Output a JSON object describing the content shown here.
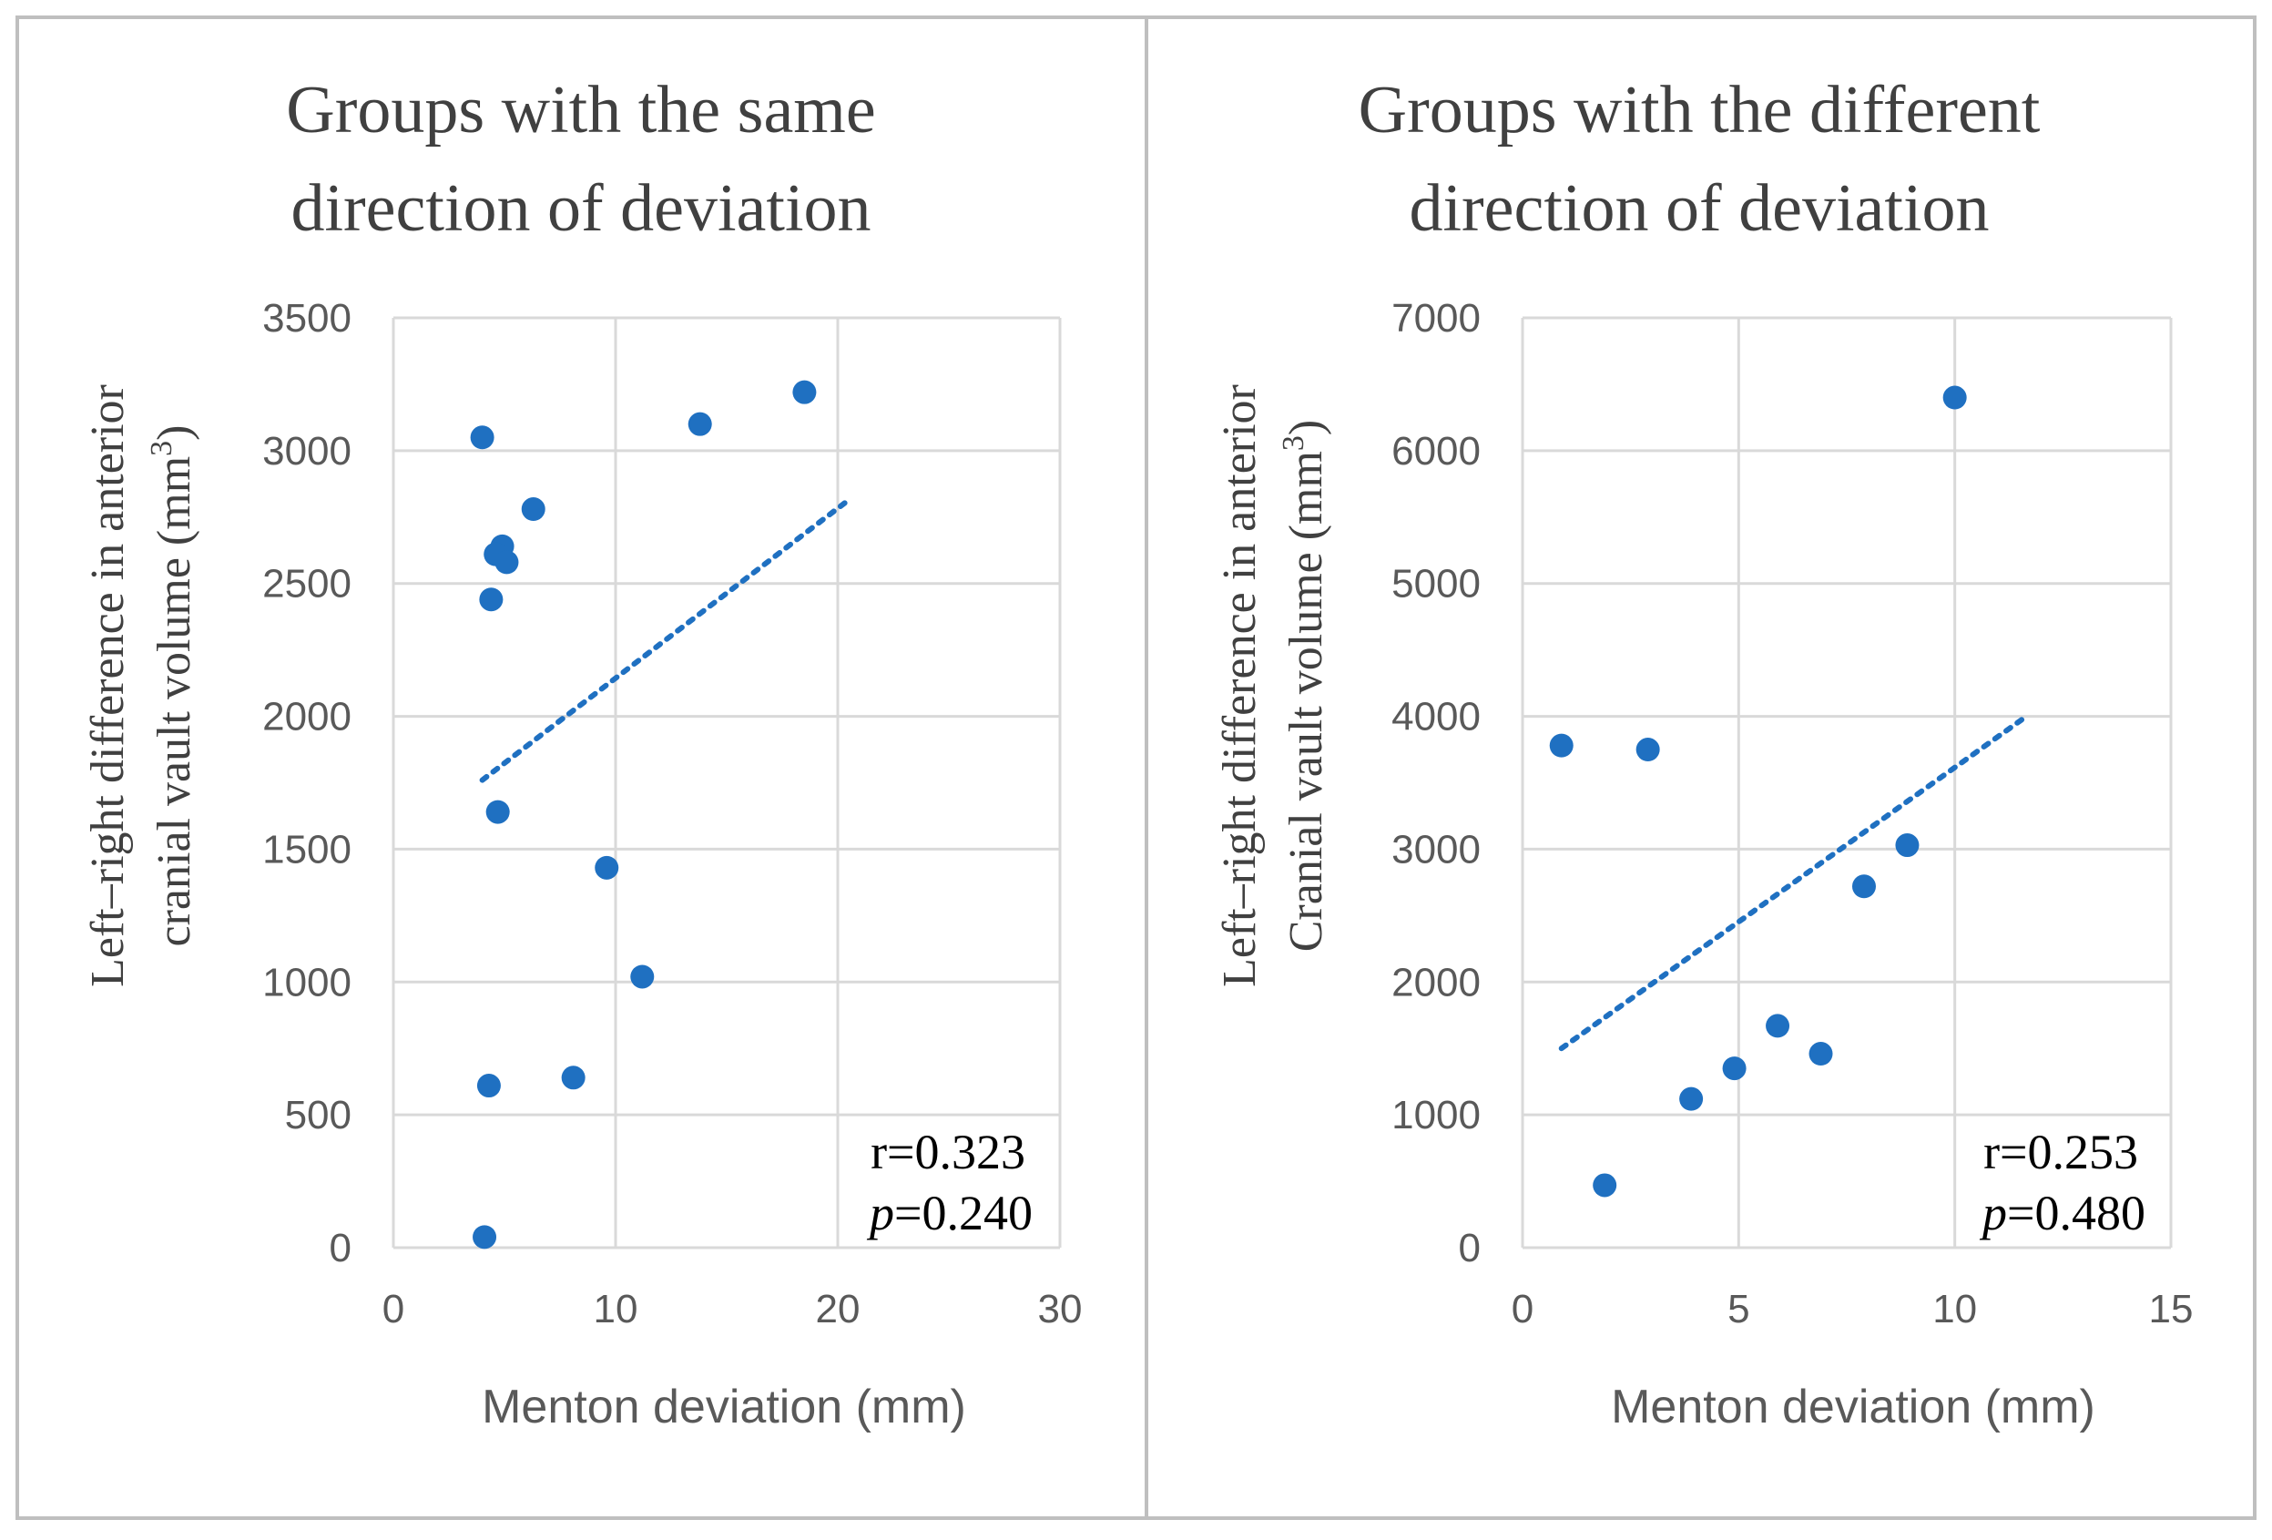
{
  "chart_data": [
    {
      "type": "scatter",
      "title": [
        "Groups with the same",
        "direction of deviation"
      ],
      "xlabel": "Menton deviation (mm)",
      "ylabel": [
        "Left–right difference  in anterior",
        "cranial vault volume (mm",
        "3",
        ")"
      ],
      "xlim": [
        0,
        30
      ],
      "ylim": [
        0,
        3500
      ],
      "xticks": [
        0,
        10,
        20,
        30
      ],
      "yticks": [
        0,
        500,
        1000,
        1500,
        2000,
        2500,
        3000,
        3500
      ],
      "grid": true,
      "points": [
        {
          "x": 4.0,
          "y": 3050
        },
        {
          "x": 18.5,
          "y": 3220
        },
        {
          "x": 13.8,
          "y": 3100
        },
        {
          "x": 6.3,
          "y": 2780
        },
        {
          "x": 4.9,
          "y": 2640
        },
        {
          "x": 4.6,
          "y": 2610
        },
        {
          "x": 5.1,
          "y": 2580
        },
        {
          "x": 4.4,
          "y": 2440
        },
        {
          "x": 4.7,
          "y": 1640
        },
        {
          "x": 9.6,
          "y": 1430
        },
        {
          "x": 11.2,
          "y": 1020
        },
        {
          "x": 8.1,
          "y": 640
        },
        {
          "x": 4.3,
          "y": 610
        },
        {
          "x": 4.1,
          "y": 40
        }
      ],
      "trendline": {
        "style": "dotted",
        "x": [
          4.0,
          20.5
        ],
        "y": [
          1760,
          2815
        ]
      },
      "annotation": {
        "r_label": "r=0.323",
        "p_symbol": "p",
        "p_value": "=0.240"
      },
      "colors": {
        "points": "#1f70c1",
        "grid": "#d9d9d9",
        "text": "#595959"
      }
    },
    {
      "type": "scatter",
      "title": [
        "Groups with the different",
        "direction of deviation"
      ],
      "xlabel": "Menton deviation (mm)",
      "ylabel": [
        "Left–right difference  in anterior",
        "Cranial vault volume (mm",
        "3",
        ")"
      ],
      "xlim": [
        0,
        15
      ],
      "ylim": [
        0,
        7000
      ],
      "xticks": [
        0,
        5,
        10,
        15
      ],
      "yticks": [
        0,
        1000,
        2000,
        3000,
        4000,
        5000,
        6000,
        7000
      ],
      "grid": true,
      "points": [
        {
          "x": 10.0,
          "y": 6400
        },
        {
          "x": 0.9,
          "y": 3780
        },
        {
          "x": 2.9,
          "y": 3750
        },
        {
          "x": 8.9,
          "y": 3030
        },
        {
          "x": 7.9,
          "y": 2720
        },
        {
          "x": 5.9,
          "y": 1670
        },
        {
          "x": 6.9,
          "y": 1460
        },
        {
          "x": 4.9,
          "y": 1350
        },
        {
          "x": 3.9,
          "y": 1120
        },
        {
          "x": 1.9,
          "y": 470
        }
      ],
      "trendline": {
        "style": "dotted",
        "x": [
          0.9,
          11.7
        ],
        "y": [
          1500,
          4010
        ]
      },
      "annotation": {
        "r_label": "r=0.253",
        "p_symbol": "p",
        "p_value": "=0.480"
      },
      "colors": {
        "points": "#1f70c1",
        "grid": "#d9d9d9",
        "text": "#595959"
      }
    }
  ]
}
